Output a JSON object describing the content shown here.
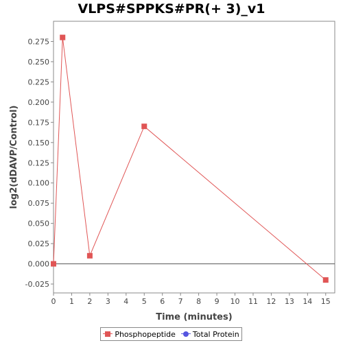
{
  "chart_data": {
    "type": "line",
    "title": "VLPS#SPPKS#PR(+ 3)_v1",
    "xlabel": "Time (minutes)",
    "ylabel": "log2(dDAVP/Control)",
    "xlim": [
      0,
      15.5
    ],
    "ylim": [
      -0.036,
      0.3
    ],
    "x_ticks": [
      0,
      1,
      2,
      3,
      4,
      5,
      6,
      7,
      8,
      9,
      10,
      11,
      12,
      13,
      14,
      15
    ],
    "y_ticks": [
      -0.025,
      0,
      0.025,
      0.05,
      0.075,
      0.1,
      0.125,
      0.15,
      0.175,
      0.2,
      0.225,
      0.25,
      0.275
    ],
    "x_tick_labels": [
      "0",
      "1",
      "2",
      "3",
      "4",
      "5",
      "6",
      "7",
      "8",
      "9",
      "10",
      "11",
      "12",
      "13",
      "14",
      "15"
    ],
    "y_tick_labels": [
      "-0.025",
      "0.000",
      "0.025",
      "0.050",
      "0.075",
      "0.100",
      "0.125",
      "0.150",
      "0.175",
      "0.200",
      "0.225",
      "0.250",
      "0.275"
    ],
    "zero_line": true,
    "grid": false,
    "legend_position": "bottom",
    "series": [
      {
        "name": "Phosphopeptide",
        "color": "#e05555",
        "marker": "square",
        "x": [
          0,
          0.5,
          2,
          5,
          15
        ],
        "y": [
          0,
          0.28,
          0.01,
          0.17,
          -0.02
        ]
      },
      {
        "name": "Total Protein",
        "color": "#5555e0",
        "marker": "circle",
        "x": [],
        "y": []
      }
    ]
  }
}
